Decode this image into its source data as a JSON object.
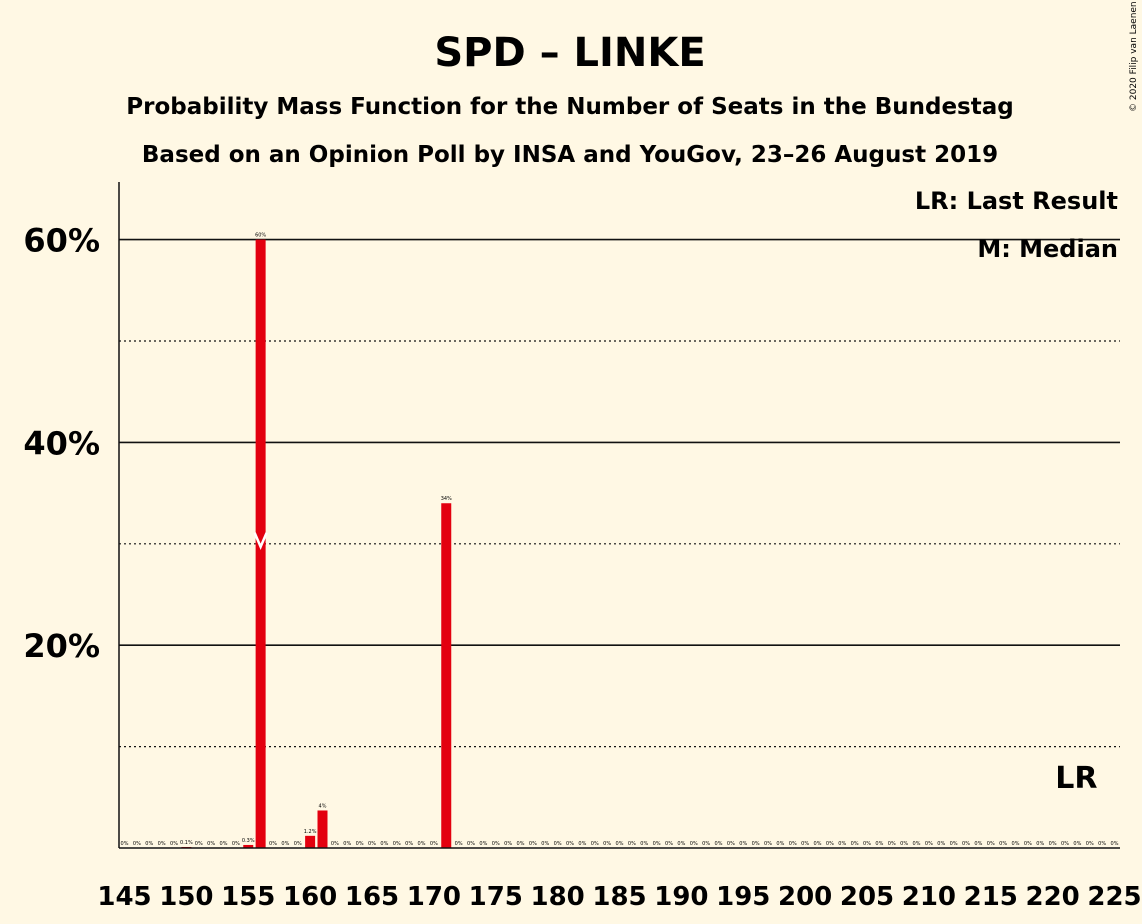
{
  "chart_data": {
    "type": "bar",
    "title": "SPD – LINKE",
    "subtitle_1": "Probability Mass Function for the Number of Seats in the Bundestag",
    "subtitle_2": "Based on an Opinion Poll by INSA and YouGov, 23–26 August 2019",
    "copyright": "© 2020 Filip van Laenen",
    "legend": {
      "lr": "LR: Last Result",
      "median": "M: Median",
      "placement": "top-right"
    },
    "last_result_label": "LR",
    "last_result_seat": 222,
    "median_seat": 156,
    "ylim": [
      0,
      0.65
    ],
    "yticks": [
      {
        "value": 0.2,
        "label": "20%"
      },
      {
        "value": 0.4,
        "label": "40%"
      },
      {
        "value": 0.6,
        "label": "60%"
      }
    ],
    "minor_gridlines": [
      0.1,
      0.3,
      0.5
    ],
    "x_tick_values": [
      145,
      150,
      155,
      160,
      165,
      170,
      175,
      180,
      185,
      190,
      195,
      200,
      205,
      210,
      215,
      220,
      225
    ],
    "x": [
      145,
      146,
      147,
      148,
      149,
      150,
      151,
      152,
      153,
      154,
      155,
      156,
      157,
      158,
      159,
      160,
      161,
      162,
      163,
      164,
      165,
      166,
      167,
      168,
      169,
      170,
      171,
      172,
      173,
      174,
      175,
      176,
      177,
      178,
      179,
      180,
      181,
      182,
      183,
      184,
      185,
      186,
      187,
      188,
      189,
      190,
      191,
      192,
      193,
      194,
      195,
      196,
      197,
      198,
      199,
      200,
      201,
      202,
      203,
      204,
      205,
      206,
      207,
      208,
      209,
      210,
      211,
      212,
      213,
      214,
      215,
      216,
      217,
      218,
      219,
      220,
      221,
      222,
      223,
      224,
      225
    ],
    "values": [
      0,
      0,
      0,
      0,
      0,
      0.001,
      0,
      0,
      0,
      0,
      0.003,
      0.6,
      0,
      0,
      0,
      0.012,
      0.037,
      0,
      0,
      0,
      0,
      0,
      0,
      0,
      0,
      0,
      0.34,
      0,
      0,
      0,
      0,
      0,
      0,
      0,
      0,
      0,
      0,
      0,
      0,
      0,
      0,
      0,
      0,
      0,
      0,
      0,
      0,
      0,
      0,
      0,
      0,
      0,
      0,
      0,
      0,
      0,
      0,
      0,
      0,
      0,
      0,
      0,
      0,
      0,
      0,
      0,
      0,
      0,
      0,
      0,
      0,
      0,
      0,
      0,
      0,
      0,
      0,
      0,
      0,
      0,
      0
    ],
    "data_labels": [
      "0%",
      "0%",
      "0%",
      "0%",
      "0%",
      "0.1%",
      "0%",
      "0%",
      "0%",
      "0%",
      "0.3%",
      "60%",
      "0%",
      "0%",
      "0%",
      "1.2%",
      "4%",
      "0%",
      "0%",
      "0%",
      "0%",
      "0%",
      "0%",
      "0%",
      "0%",
      "0%",
      "34%",
      "0%",
      "0%",
      "0%",
      "0%",
      "0%",
      "0%",
      "0%",
      "0%",
      "0%",
      "0%",
      "0%",
      "0%",
      "0%",
      "0%",
      "0%",
      "0%",
      "0%",
      "0%",
      "0%",
      "0%",
      "0%",
      "0%",
      "0%",
      "0%",
      "0%",
      "0%",
      "0%",
      "0%",
      "0%",
      "0%",
      "0%",
      "0%",
      "0%",
      "0%",
      "0%",
      "0%",
      "0%",
      "0%",
      "0%",
      "0%",
      "0%",
      "0%",
      "0%",
      "0%",
      "0%",
      "0%",
      "0%",
      "0%",
      "0%",
      "0%",
      "0%",
      "0%",
      "0%",
      "0%"
    ],
    "colors": {
      "bar": "#E3000F",
      "background": "#FFF8E4",
      "axis": "#111111",
      "median_marker": "#FFFFFF"
    }
  }
}
